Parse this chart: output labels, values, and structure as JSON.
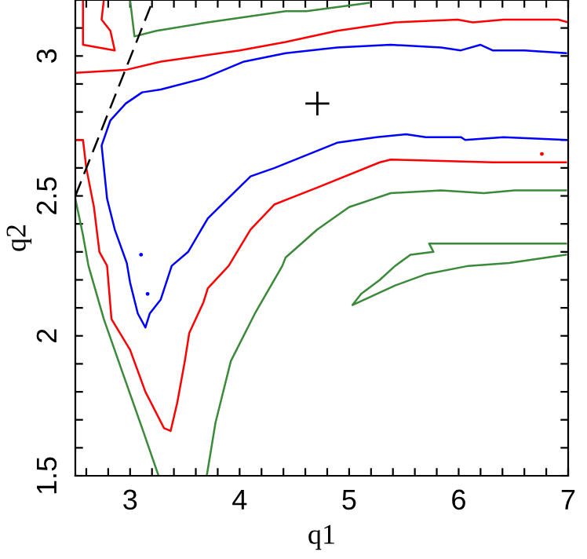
{
  "chart_data": {
    "type": "line",
    "xlabel": "q1",
    "ylabel": "q2",
    "xlim": [
      2.5,
      7
    ],
    "ylim": [
      1.5,
      3.2
    ],
    "xticks": [
      {
        "value": 2.6,
        "label": null
      },
      {
        "value": 2.8,
        "label": null
      },
      3,
      {
        "value": 3.2,
        "label": null
      },
      {
        "value": 3.4,
        "label": null
      },
      {
        "value": 3.6,
        "label": null
      },
      {
        "value": 3.8,
        "label": null
      },
      4,
      {
        "value": 4.2,
        "label": null
      },
      {
        "value": 4.4,
        "label": null
      },
      {
        "value": 4.6,
        "label": null
      },
      {
        "value": 4.8,
        "label": null
      },
      5,
      {
        "value": 5.2,
        "label": null
      },
      {
        "value": 5.4,
        "label": null
      },
      {
        "value": 5.6,
        "label": null
      },
      {
        "value": 5.8,
        "label": null
      },
      6,
      {
        "value": 6.2,
        "label": null
      },
      {
        "value": 6.4,
        "label": null
      },
      {
        "value": 6.6,
        "label": null
      },
      {
        "value": 6.8,
        "label": null
      },
      7
    ],
    "yticks": [
      1.5,
      {
        "value": 1.6,
        "label": null
      },
      {
        "value": 1.7,
        "label": null
      },
      {
        "value": 1.8,
        "label": null
      },
      {
        "value": 1.9,
        "label": null
      },
      2,
      {
        "value": 2.1,
        "label": null
      },
      {
        "value": 2.2,
        "label": null
      },
      {
        "value": 2.3,
        "label": null
      },
      {
        "value": 2.4,
        "label": null
      },
      2.5,
      {
        "value": 2.6,
        "label": null
      },
      {
        "value": 2.7,
        "label": null
      },
      {
        "value": 2.8,
        "label": null
      },
      {
        "value": 2.9,
        "label": null
      },
      3,
      {
        "value": 3.1,
        "label": null
      },
      {
        "value": 3.2,
        "label": null
      }
    ],
    "series": [
      {
        "color": "#3a8a3a",
        "x": [
          3.0,
          3.04,
          3.24,
          3.71,
          4.42,
          4.61,
          5.18
        ],
        "values": [
          3.2,
          3.07,
          3.09,
          3.12,
          3.16,
          3.16,
          3.19
        ]
      },
      {
        "color": "#3a8a3a",
        "x": [
          2.5,
          2.57,
          2.62,
          2.76,
          2.93,
          3.11,
          3.26
        ],
        "values": [
          2.49,
          2.36,
          2.25,
          2.06,
          1.87,
          1.67,
          1.5
        ]
      },
      {
        "color": "#3a8a3a",
        "x": [
          3.7,
          3.78,
          3.92,
          4.14,
          4.39,
          4.42,
          4.71,
          5.0,
          5.38,
          5.84,
          6.23,
          6.51,
          6.98
        ],
        "values": [
          1.5,
          1.69,
          1.91,
          2.08,
          2.25,
          2.28,
          2.38,
          2.46,
          2.51,
          2.52,
          2.51,
          2.52,
          2.52
        ]
      },
      {
        "color": "#3a8a3a",
        "x": [
          6.98,
          5.73,
          5.77,
          5.56,
          5.42,
          5.28,
          5.11,
          5.03,
          5.42,
          5.7,
          6.09,
          6.46,
          6.98
        ],
        "values": [
          2.33,
          2.33,
          2.3,
          2.29,
          2.25,
          2.2,
          2.15,
          2.11,
          2.18,
          2.22,
          2.25,
          2.26,
          2.29
        ]
      },
      {
        "color": "#ff0000",
        "x": [
          2.57,
          2.57,
          2.86,
          2.82,
          2.74,
          2.76
        ],
        "values": [
          3.2,
          3.04,
          3.02,
          3.09,
          3.13,
          3.2
        ]
      },
      {
        "color": "#ff0000",
        "x": [
          2.5,
          2.96,
          3.28,
          4.0,
          4.42,
          4.89,
          5.42,
          5.99,
          6.13,
          6.41,
          6.91,
          7.0
        ],
        "values": [
          2.94,
          2.95,
          2.98,
          3.02,
          3.05,
          3.09,
          3.12,
          3.13,
          3.12,
          3.13,
          3.13,
          3.12
        ]
      },
      {
        "color": "#ff0000",
        "x": [
          2.5,
          2.57,
          2.6,
          2.67,
          2.72,
          2.79,
          2.83,
          3.0,
          3.14,
          3.31,
          3.37,
          3.43,
          3.5,
          3.54,
          3.67,
          3.71,
          3.9,
          4.1,
          4.32,
          4.71,
          5.28,
          5.38,
          6.31,
          6.98
        ],
        "values": [
          2.7,
          2.7,
          2.6,
          2.46,
          2.3,
          2.25,
          2.06,
          1.95,
          1.8,
          1.67,
          1.66,
          1.76,
          1.91,
          2.01,
          2.12,
          2.17,
          2.25,
          2.38,
          2.47,
          2.53,
          2.62,
          2.63,
          2.62,
          2.62
        ]
      },
      {
        "color": "#0000ff",
        "x": [
          6.98,
          6.6,
          6.31,
          6.2,
          6.02,
          5.84,
          5.38,
          4.89,
          4.42,
          4.04,
          3.67,
          3.28,
          3.11,
          2.96,
          2.82,
          2.74,
          2.79,
          2.86,
          2.97,
          3.0,
          3.07,
          3.14,
          3.18,
          3.28,
          3.38,
          3.53,
          3.71,
          4.1,
          4.32,
          4.89,
          5.25,
          5.52,
          5.7,
          6.02,
          6.06,
          6.41,
          6.98
        ],
        "values": [
          3.01,
          3.02,
          3.02,
          3.04,
          3.02,
          3.03,
          3.04,
          3.03,
          3.01,
          2.98,
          2.92,
          2.88,
          2.87,
          2.83,
          2.77,
          2.68,
          2.49,
          2.38,
          2.26,
          2.19,
          2.08,
          2.03,
          2.08,
          2.13,
          2.25,
          2.3,
          2.42,
          2.57,
          2.6,
          2.69,
          2.71,
          2.72,
          2.71,
          2.71,
          2.7,
          2.71,
          2.7
        ]
      },
      {
        "type": "scatter",
        "marker": "circle",
        "color": "#0000ff",
        "x": [
          3.1,
          3.16
        ],
        "values": [
          2.29,
          2.15
        ]
      },
      {
        "type": "scatter",
        "marker": "circle",
        "color": "#ff0000",
        "x": [
          6.76
        ],
        "values": [
          2.65
        ]
      },
      {
        "type": "scatter",
        "marker": "cross",
        "color": "#000000",
        "x": [
          4.71
        ],
        "values": [
          2.83
        ]
      },
      {
        "line_style": "dashed",
        "color": "#000000",
        "x": [
          2.5,
          3.21
        ],
        "values": [
          2.5,
          3.2
        ]
      }
    ]
  }
}
